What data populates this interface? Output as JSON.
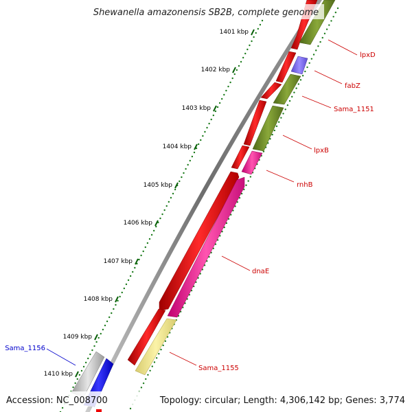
{
  "title": "Shewanella amazonensis SB2B, complete genome",
  "footer": {
    "accession": "Accession: NC_008700",
    "topology": "Topology: circular; Length: 4,306,142 bp; Genes: 3,774"
  },
  "scale_ticks": [
    "1401 kbp",
    "1402 kbp",
    "1403 kbp",
    "1404 kbp",
    "1405 kbp",
    "1406 kbp",
    "1407 kbp",
    "1408 kbp",
    "1409 kbp",
    "1410 kbp"
  ],
  "gene_labels": [
    {
      "name": "lpxD",
      "color": "#cc0000"
    },
    {
      "name": "fabZ",
      "color": "#cc0000"
    },
    {
      "name": "Sama_1151",
      "color": "#cc0000"
    },
    {
      "name": "lpxB",
      "color": "#cc0000"
    },
    {
      "name": "rnhB",
      "color": "#cc0000"
    },
    {
      "name": "dnaE",
      "color": "#cc0000"
    },
    {
      "name": "Sama_1155",
      "color": "#cc0000"
    },
    {
      "name": "Sama_1156",
      "color": "#0000cc"
    }
  ],
  "colors": {
    "cds_forward": "#ee0000",
    "lipid_metabolism": "#6b8e23",
    "fatty_acid": "#7b68ee",
    "replication": "#ff1493",
    "unknown_function": "#f0e68c",
    "hypothetical": "#c0c0c0",
    "other_strand": "#0000ee",
    "backbone": "#777777",
    "gc_skew_dots": "#1a7a1a"
  }
}
